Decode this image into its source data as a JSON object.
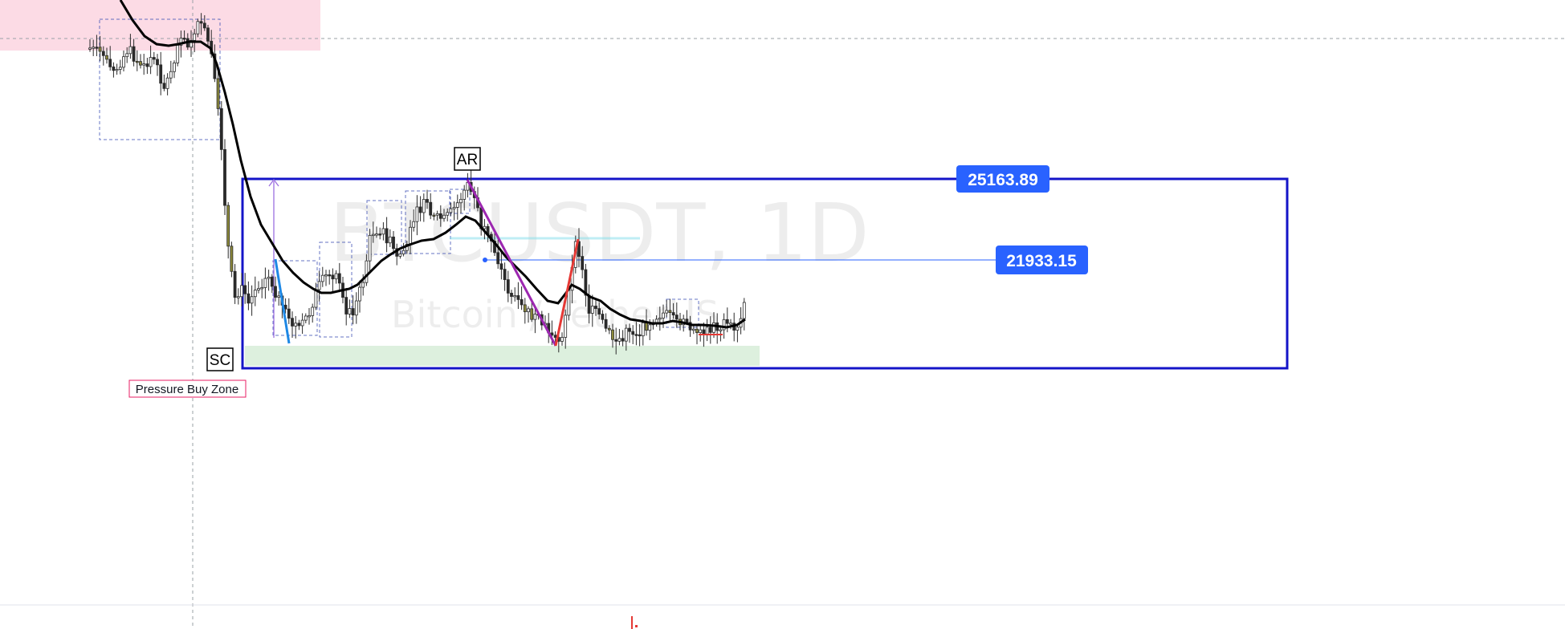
{
  "chart_data": {
    "type": "candlestick",
    "symbol": "BTCUSDT, 1D",
    "description": "Bitcoin / TetherUS",
    "annotations": {
      "ar_label": "AR",
      "sc_label": "SC",
      "buy_zone_label": "Pressure Buy Zone",
      "range_high_label": "25163.89",
      "level_label": "21933.15"
    },
    "colors": {
      "range_box": "#1414c8",
      "price_tag": "#2962ff",
      "wyckoff_line": "#9c27b0",
      "up_leg": "#e53935",
      "down_leg": "#1e88e5",
      "buy_zone_fill": "#e8f5e9",
      "sell_zone_fill": "#fce4ec",
      "buy_zone_border": "#e91e63",
      "moving_average": "#000000"
    },
    "legend": "none",
    "grid": false
  }
}
